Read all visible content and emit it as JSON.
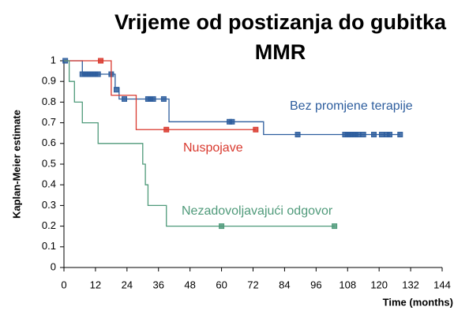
{
  "chart_data": {
    "type": "km",
    "title": [
      "Vrijeme od postizanja do gubitka",
      "MMR"
    ],
    "x_label": "Time (months)",
    "y_label": "Kaplan-Meier estimate",
    "xlim": [
      0,
      144
    ],
    "xticks": [
      0,
      12,
      24,
      36,
      48,
      60,
      72,
      84,
      96,
      108,
      120,
      132,
      144
    ],
    "ylim": [
      0,
      1
    ],
    "yticks": [
      0,
      0.1,
      0.2,
      0.3,
      0.4,
      0.5,
      0.6,
      0.7,
      0.8,
      0.9,
      1
    ],
    "grid": false,
    "series": [
      {
        "name": "Bez promjene terapije",
        "color": "#2e5e9e",
        "x": [
          0,
          7,
          19.5,
          21,
          40,
          76,
          128
        ],
        "values": [
          1,
          0.935,
          0.87,
          0.815,
          0.705,
          0.643,
          0.643
        ],
        "censor_x": [
          0.5,
          7,
          8,
          9,
          10,
          11,
          12,
          13,
          18,
          20,
          23,
          32,
          33,
          34,
          38,
          63,
          64,
          89,
          107,
          108,
          109,
          110,
          111,
          112,
          114,
          118,
          121,
          123,
          124,
          128
        ],
        "censor_values": [
          1,
          0.935,
          0.935,
          0.935,
          0.935,
          0.935,
          0.935,
          0.935,
          0.935,
          0.86,
          0.815,
          0.815,
          0.815,
          0.815,
          0.815,
          0.705,
          0.705,
          0.643,
          0.643,
          0.643,
          0.643,
          0.643,
          0.643,
          0.643,
          0.643,
          0.643,
          0.643,
          0.643,
          0.643,
          0.643
        ]
      },
      {
        "name": "Nuspojave",
        "color": "#d9392e",
        "x": [
          0,
          18,
          27.5,
          73
        ],
        "values": [
          1,
          0.833,
          0.667,
          0.667
        ],
        "censor_x": [
          14,
          39,
          73
        ],
        "censor_values": [
          1,
          0.667,
          0.667
        ]
      },
      {
        "name": "Nezadovoljavajući odgovor",
        "color": "#4f9a7a",
        "x": [
          0,
          2,
          4,
          7,
          13,
          30,
          31,
          32,
          39,
          103
        ],
        "values": [
          1,
          0.9,
          0.8,
          0.7,
          0.6,
          0.5,
          0.4,
          0.3,
          0.2,
          0.2
        ],
        "censor_x": [
          60,
          103
        ],
        "censor_values": [
          0.2,
          0.2
        ]
      }
    ]
  }
}
